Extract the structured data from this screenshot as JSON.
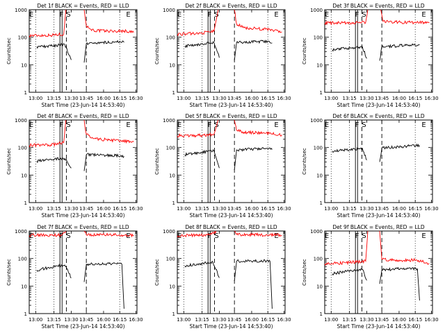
{
  "chart_data": [
    {
      "type": "line",
      "title": "Det 1f BLACK = Events, RED = LLD",
      "xlabel": "Start Time (23-Jun-14 14:53:40)",
      "ylabel": "Counts/sec",
      "x_ticks": [
        "13:00",
        "13:15",
        "13:30",
        "13:45",
        "16:00",
        "16:15",
        "16:30"
      ],
      "y_ticks": [
        "1",
        "10",
        "100",
        "1000"
      ],
      "y_scale": "log",
      "ylim": [
        1,
        1000
      ],
      "markers": [
        "E",
        "F",
        "S",
        "E"
      ],
      "series": [
        {
          "color": "#ff0000",
          "segments": [
            [
              [
                0.0,
                115
              ],
              [
                0.2,
                118
              ],
              [
                0.32,
                130
              ],
              [
                0.34,
                1000
              ]
            ],
            [
              [
                0.51,
                1000
              ],
              [
                0.53,
                250
              ],
              [
                0.6,
                175
              ],
              [
                0.8,
                165
              ],
              [
                0.88,
                170
              ],
              [
                0.97,
                150
              ]
            ]
          ]
        },
        {
          "color": "#000000",
          "segments": [
            [
              [
                0.07,
                45
              ],
              [
                0.2,
                48
              ],
              [
                0.33,
                55
              ],
              [
                0.39,
                15
              ]
            ],
            [
              [
                0.51,
                12
              ],
              [
                0.53,
                60
              ],
              [
                0.8,
                68
              ],
              [
                0.88,
                65
              ]
            ]
          ]
        }
      ]
    },
    {
      "type": "line",
      "title": "Det 2f BLACK = Events, RED = LLD",
      "xlabel": "Start Time (23-Jun-14 14:53:40)",
      "ylabel": "Counts/sec",
      "x_ticks": [
        "13:00",
        "13:15",
        "13:30",
        "13:45",
        "16:00",
        "16:15",
        "16:30"
      ],
      "y_ticks": [
        "1",
        "10",
        "100",
        "1000"
      ],
      "y_scale": "log",
      "ylim": [
        1,
        1000
      ],
      "markers": [
        "E",
        "F",
        "S",
        "E"
      ],
      "series": [
        {
          "color": "#ff0000",
          "segments": [
            [
              [
                0.0,
                130
              ],
              [
                0.2,
                138
              ],
              [
                0.34,
                165
              ],
              [
                0.38,
                1000
              ]
            ],
            [
              [
                0.53,
                1000
              ],
              [
                0.55,
                300
              ],
              [
                0.62,
                220
              ],
              [
                0.82,
                195
              ],
              [
                0.9,
                175
              ],
              [
                0.97,
                155
              ]
            ]
          ]
        },
        {
          "color": "#000000",
          "segments": [
            [
              [
                0.07,
                48
              ],
              [
                0.2,
                55
              ],
              [
                0.34,
                65
              ],
              [
                0.39,
                18
              ]
            ],
            [
              [
                0.53,
                14
              ],
              [
                0.55,
                65
              ],
              [
                0.8,
                70
              ],
              [
                0.88,
                62
              ]
            ]
          ]
        }
      ]
    },
    {
      "type": "line",
      "title": "Det 3f BLACK = Events, RED = LLD",
      "xlabel": "Start Time (23-Jun-14 14:53:40)",
      "ylabel": "Counts/sec",
      "x_ticks": [
        "13:00",
        "13:15",
        "13:30",
        "13:45",
        "16:00",
        "16:15",
        "16:30"
      ],
      "y_ticks": [
        "1",
        "10",
        "100",
        "1000"
      ],
      "y_scale": "log",
      "ylim": [
        1,
        1000
      ],
      "markers": [
        "E",
        "F",
        "S",
        "E"
      ],
      "series": [
        {
          "color": "#ff0000",
          "segments": [
            [
              [
                0.0,
                330
              ],
              [
                0.2,
                330
              ],
              [
                0.38,
                345
              ],
              [
                0.4,
                1000
              ]
            ],
            [
              [
                0.52,
                1000
              ],
              [
                0.54,
                380
              ],
              [
                0.7,
                350
              ],
              [
                0.88,
                340
              ],
              [
                0.97,
                330
              ]
            ]
          ]
        },
        {
          "color": "#000000",
          "segments": [
            [
              [
                0.07,
                35
              ],
              [
                0.2,
                40
              ],
              [
                0.35,
                45
              ],
              [
                0.39,
                17
              ]
            ],
            [
              [
                0.51,
                14
              ],
              [
                0.53,
                45
              ],
              [
                0.78,
                52
              ],
              [
                0.88,
                52
              ]
            ]
          ]
        }
      ]
    },
    {
      "type": "line",
      "title": "Det 4f BLACK = Events, RED = LLD",
      "xlabel": "Start Time (23-Jun-14 14:53:40)",
      "ylabel": "Counts/sec",
      "x_ticks": [
        "13:00",
        "13:15",
        "13:30",
        "13:45",
        "16:00",
        "16:15",
        "16:30"
      ],
      "y_ticks": [
        "1",
        "10",
        "100",
        "1000"
      ],
      "y_scale": "log",
      "ylim": [
        1,
        1000
      ],
      "markers": [
        "E",
        "F",
        "S",
        "E"
      ],
      "series": [
        {
          "color": "#ff0000",
          "segments": [
            [
              [
                0.0,
                120
              ],
              [
                0.2,
                125
              ],
              [
                0.32,
                150
              ],
              [
                0.34,
                1000
              ]
            ],
            [
              [
                0.51,
                1000
              ],
              [
                0.53,
                300
              ],
              [
                0.6,
                210
              ],
              [
                0.8,
                180
              ],
              [
                0.97,
                160
              ]
            ]
          ]
        },
        {
          "color": "#000000",
          "segments": [
            [
              [
                0.07,
                32
              ],
              [
                0.2,
                38
              ],
              [
                0.33,
                40
              ],
              [
                0.39,
                18
              ]
            ],
            [
              [
                0.51,
                14
              ],
              [
                0.53,
                55
              ],
              [
                0.8,
                52
              ],
              [
                0.88,
                48
              ]
            ]
          ]
        }
      ]
    },
    {
      "type": "line",
      "title": "Det 5f BLACK = Events, RED = LLD",
      "xlabel": "Start Time (23-Jun-14 14:53:40)",
      "ylabel": "Counts/sec",
      "x_ticks": [
        "13:00",
        "13:15",
        "13:30",
        "13:45",
        "16:00",
        "16:15",
        "16:30"
      ],
      "y_ticks": [
        "1",
        "10",
        "100",
        "1000"
      ],
      "y_scale": "log",
      "ylim": [
        1,
        1000
      ],
      "markers": [
        "E",
        "F",
        "S",
        "E"
      ],
      "series": [
        {
          "color": "#ff0000",
          "segments": [
            [
              [
                0.0,
                270
              ],
              [
                0.2,
                275
              ],
              [
                0.34,
                300
              ],
              [
                0.38,
                1000
              ]
            ],
            [
              [
                0.53,
                1000
              ],
              [
                0.55,
                420
              ],
              [
                0.62,
                360
              ],
              [
                0.82,
                330
              ],
              [
                0.97,
                290
              ]
            ]
          ]
        },
        {
          "color": "#000000",
          "segments": [
            [
              [
                0.07,
                55
              ],
              [
                0.2,
                65
              ],
              [
                0.34,
                75
              ],
              [
                0.39,
                18
              ]
            ],
            [
              [
                0.53,
                15
              ],
              [
                0.55,
                82
              ],
              [
                0.8,
                92
              ],
              [
                0.88,
                85
              ]
            ]
          ]
        }
      ]
    },
    {
      "type": "line",
      "title": "Det 6f BLACK = Events, RED = LLD",
      "xlabel": "Start Time (23-Jun-14 14:53:40)",
      "ylabel": "Counts/sec",
      "x_ticks": [
        "13:00",
        "13:15",
        "13:30",
        "13:45",
        "16:00",
        "16:15",
        "16:30"
      ],
      "y_ticks": [
        "1",
        "10",
        "100",
        "1000"
      ],
      "y_scale": "log",
      "ylim": [
        1,
        1000
      ],
      "markers": [
        "E",
        "F",
        "S",
        "E"
      ],
      "series": [
        {
          "color": "#000000",
          "segments": [
            [
              [
                0.07,
                75
              ],
              [
                0.2,
                82
              ],
              [
                0.35,
                92
              ],
              [
                0.39,
                35
              ]
            ],
            [
              [
                0.51,
                30
              ],
              [
                0.53,
                95
              ],
              [
                0.75,
                110
              ],
              [
                0.88,
                120
              ]
            ]
          ]
        }
      ]
    },
    {
      "type": "line",
      "title": "Det 7f BLACK = Events, RED = LLD",
      "xlabel": "Start Time (23-Jun-14 14:53:40)",
      "ylabel": "Counts/sec",
      "x_ticks": [
        "13:00",
        "13:15",
        "13:30",
        "13:45",
        "16:00",
        "16:15",
        "16:30"
      ],
      "y_ticks": [
        "1",
        "10",
        "100",
        "1000"
      ],
      "y_scale": "log",
      "ylim": [
        1,
        1000
      ],
      "markers": [
        "E",
        "F",
        "S",
        "E"
      ],
      "series": [
        {
          "color": "#ff0000",
          "segments": [
            [
              [
                0.0,
                700
              ],
              [
                0.3,
                720
              ],
              [
                0.34,
                1000
              ]
            ],
            [
              [
                0.51,
                1000
              ],
              [
                0.53,
                750
              ],
              [
                0.97,
                700
              ]
            ]
          ]
        },
        {
          "color": "#000000",
          "segments": [
            [
              [
                0.07,
                38
              ],
              [
                0.2,
                48
              ],
              [
                0.33,
                58
              ],
              [
                0.39,
                20
              ]
            ],
            [
              [
                0.51,
                14
              ],
              [
                0.53,
                62
              ],
              [
                0.8,
                66
              ],
              [
                0.86,
                62
              ],
              [
                0.88,
                1.5
              ]
            ]
          ]
        }
      ]
    },
    {
      "type": "line",
      "title": "Det 8f BLACK = Events, RED = LLD",
      "xlabel": "Start Time (23-Jun-14 14:53:40)",
      "ylabel": "Counts/sec",
      "x_ticks": [
        "13:00",
        "13:15",
        "13:30",
        "13:45",
        "16:00",
        "16:15",
        "16:30"
      ],
      "y_ticks": [
        "1",
        "10",
        "100",
        "1000"
      ],
      "y_scale": "log",
      "ylim": [
        1,
        1000
      ],
      "markers": [
        "E",
        "F",
        "S",
        "E"
      ],
      "series": [
        {
          "color": "#ff0000",
          "segments": [
            [
              [
                0.0,
                680
              ],
              [
                0.3,
                720
              ],
              [
                0.36,
                1000
              ]
            ],
            [
              [
                0.53,
                1000
              ],
              [
                0.55,
                760
              ],
              [
                0.97,
                700
              ]
            ]
          ]
        },
        {
          "color": "#000000",
          "segments": [
            [
              [
                0.07,
                55
              ],
              [
                0.2,
                65
              ],
              [
                0.33,
                75
              ],
              [
                0.39,
                20
              ]
            ],
            [
              [
                0.53,
                15
              ],
              [
                0.55,
                80
              ],
              [
                0.8,
                82
              ],
              [
                0.86,
                80
              ],
              [
                0.88,
                1.5
              ]
            ]
          ]
        }
      ]
    },
    {
      "type": "line",
      "title": "Det 9f BLACK = Events, RED = LLD",
      "xlabel": "Start Time (23-Jun-14 14:53:40)",
      "ylabel": "Counts/sec",
      "x_ticks": [
        "13:00",
        "13:15",
        "13:30",
        "13:45",
        "16:00",
        "16:15",
        "16:30"
      ],
      "y_ticks": [
        "1",
        "10",
        "100",
        "1000"
      ],
      "y_scale": "log",
      "ylim": [
        1,
        1000
      ],
      "markers": [
        "E",
        "F",
        "S",
        "E"
      ],
      "series": [
        {
          "color": "#ff0000",
          "segments": [
            [
              [
                0.0,
                65
              ],
              [
                0.2,
                70
              ],
              [
                0.38,
                80
              ],
              [
                0.4,
                1000
              ]
            ],
            [
              [
                0.51,
                1000
              ],
              [
                0.53,
                95
              ],
              [
                0.7,
                82
              ],
              [
                0.85,
                90
              ],
              [
                0.97,
                65
              ]
            ]
          ]
        },
        {
          "color": "#000000",
          "segments": [
            [
              [
                0.07,
                28
              ],
              [
                0.2,
                34
              ],
              [
                0.35,
                40
              ],
              [
                0.39,
                16
              ]
            ],
            [
              [
                0.51,
                12
              ],
              [
                0.53,
                38
              ],
              [
                0.78,
                45
              ],
              [
                0.86,
                42
              ],
              [
                0.88,
                3
              ]
            ]
          ]
        }
      ]
    }
  ]
}
